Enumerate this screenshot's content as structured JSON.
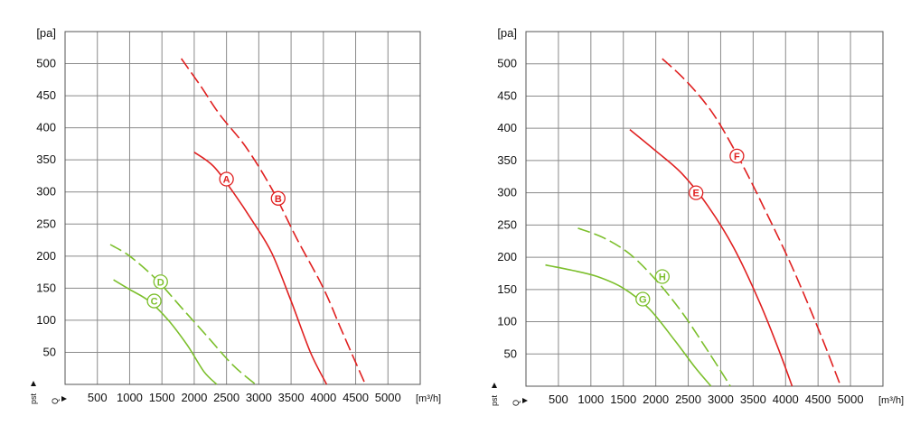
{
  "chart_data": [
    {
      "type": "line",
      "y_unit": "[pa]",
      "x_unit": "[m³/h]",
      "y_symbol": "pst",
      "x_symbol": "Q",
      "xlim": [
        0,
        5500
      ],
      "ylim": [
        0,
        550
      ],
      "x_ticks": [
        "500",
        "1000",
        "1500",
        "2000",
        "2500",
        "3000",
        "3500",
        "4000",
        "4500",
        "5000"
      ],
      "y_ticks": [
        "50",
        "100",
        "150",
        "200",
        "250",
        "300",
        "350",
        "400",
        "450",
        "500"
      ],
      "grid": true,
      "series": [
        {
          "name": "A",
          "color": "#e02020",
          "dash": false,
          "x": [
            2000,
            2300,
            2600,
            2900,
            3200,
            3500,
            3800,
            4050
          ],
          "y": [
            362,
            340,
            300,
            255,
            205,
            130,
            50,
            0
          ],
          "label_at": [
            2500,
            320
          ]
        },
        {
          "name": "B",
          "color": "#e02020",
          "dash": true,
          "x": [
            1800,
            2100,
            2400,
            2800,
            3200,
            3600,
            4000,
            4300,
            4650
          ],
          "y": [
            508,
            465,
            420,
            370,
            305,
            225,
            150,
            80,
            0
          ],
          "label_at": [
            3300,
            290
          ]
        },
        {
          "name": "C",
          "color": "#7cbf2c",
          "dash": false,
          "x": [
            750,
            1000,
            1300,
            1600,
            1900,
            2150,
            2350
          ],
          "y": [
            163,
            148,
            130,
            100,
            60,
            20,
            0
          ],
          "label_at": [
            1380,
            130
          ]
        },
        {
          "name": "D",
          "color": "#7cbf2c",
          "dash": true,
          "x": [
            700,
            1000,
            1400,
            1800,
            2200,
            2600,
            2950
          ],
          "y": [
            218,
            200,
            165,
            120,
            75,
            30,
            0
          ],
          "label_at": [
            1480,
            160
          ]
        }
      ]
    },
    {
      "type": "line",
      "y_unit": "[pa]",
      "x_unit": "[m³/h]",
      "y_symbol": "pst",
      "x_symbol": "Q",
      "xlim": [
        0,
        5500
      ],
      "ylim": [
        0,
        550
      ],
      "x_ticks": [
        "500",
        "1000",
        "1500",
        "2000",
        "2500",
        "3000",
        "3500",
        "4000",
        "4500",
        "5000"
      ],
      "y_ticks": [
        "50",
        "100",
        "150",
        "200",
        "250",
        "300",
        "350",
        "400",
        "450",
        "500"
      ],
      "grid": true,
      "series": [
        {
          "name": "E",
          "color": "#e02020",
          "dash": false,
          "x": [
            1600,
            2000,
            2400,
            2800,
            3200,
            3600,
            3900,
            4100
          ],
          "y": [
            398,
            365,
            330,
            280,
            215,
            130,
            55,
            0
          ],
          "label_at": [
            2620,
            300
          ]
        },
        {
          "name": "F",
          "color": "#e02020",
          "dash": true,
          "x": [
            2100,
            2500,
            2900,
            3300,
            3700,
            4100,
            4500,
            4850
          ],
          "y": [
            508,
            470,
            420,
            350,
            270,
            185,
            90,
            0
          ],
          "label_at": [
            3250,
            357
          ]
        },
        {
          "name": "G",
          "color": "#7cbf2c",
          "dash": false,
          "x": [
            300,
            700,
            1100,
            1500,
            1900,
            2300,
            2600,
            2850
          ],
          "y": [
            188,
            180,
            170,
            152,
            120,
            70,
            30,
            0
          ],
          "label_at": [
            1800,
            135
          ]
        },
        {
          "name": "H",
          "color": "#7cbf2c",
          "dash": true,
          "x": [
            800,
            1200,
            1600,
            2000,
            2400,
            2800,
            3150
          ],
          "y": [
            245,
            230,
            205,
            165,
            115,
            55,
            0
          ],
          "label_at": [
            2100,
            170
          ]
        }
      ]
    }
  ]
}
